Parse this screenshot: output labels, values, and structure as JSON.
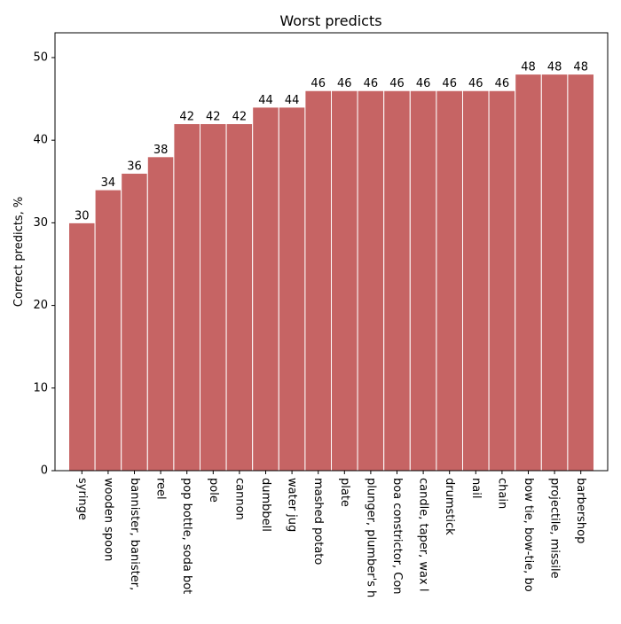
{
  "chart_data": {
    "type": "bar",
    "title": "Worst predicts",
    "xlabel": "",
    "ylabel": "Correct predicts, %",
    "ylim": [
      0,
      53
    ],
    "yticks": [
      0,
      10,
      20,
      30,
      40,
      50
    ],
    "grid": false,
    "categories": [
      "syringe",
      "wooden spoon",
      "bannister, banister,",
      "reel",
      "pop bottle, soda bot",
      "pole",
      "cannon",
      "dumbbell",
      "water jug",
      "mashed potato",
      "plate",
      "plunger, plumber's h",
      "boa constrictor, Con",
      "candle, taper, wax l",
      "drumstick",
      "nail",
      "chain",
      "bow tie, bow-tie, bo",
      "projectile, missile",
      "barbershop"
    ],
    "values": [
      30,
      34,
      36,
      38,
      42,
      42,
      42,
      44,
      44,
      46,
      46,
      46,
      46,
      46,
      46,
      46,
      46,
      48,
      48,
      48
    ],
    "bar_color": "#c66464",
    "bar_edge_color": "#ffffff"
  }
}
